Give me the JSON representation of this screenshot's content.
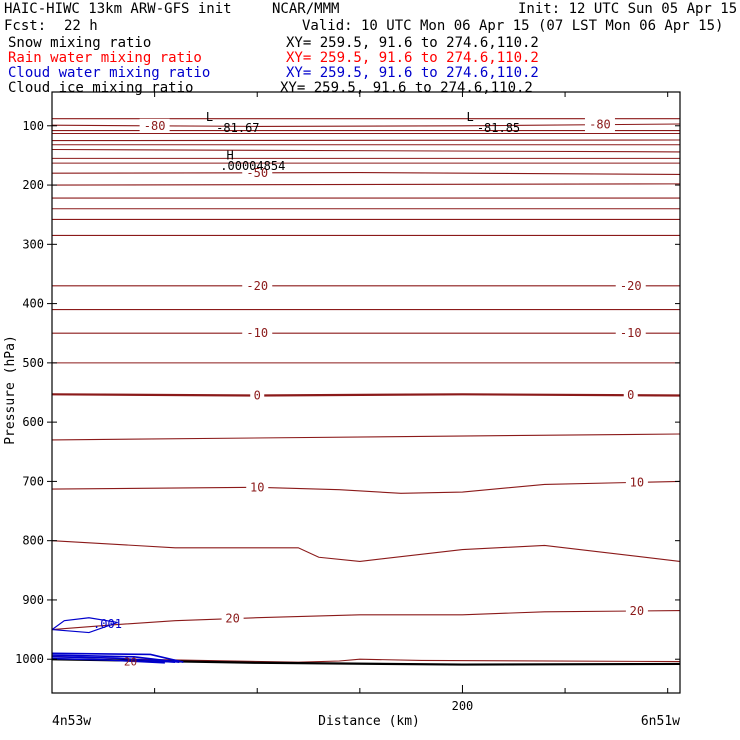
{
  "header": {
    "model": "HAIC-HIWC 13km ARW-GFS init",
    "org": "NCAR/MMM",
    "init": "Init: 12 UTC Sun 05 Apr 15",
    "fcst_label": "Fcst:",
    "fcst_value": "22 h",
    "valid": "Valid: 10 UTC Mon 06 Apr 15 (07 LST Mon 06 Apr 15)",
    "fields": [
      {
        "name": "Snow mixing ratio",
        "xy": "XY= 259.5, 91.6 to 274.6,110.2",
        "color": "#000000"
      },
      {
        "name": "Rain water mixing ratio",
        "xy": "XY= 259.5, 91.6 to 274.6,110.2",
        "color": "#ff0000"
      },
      {
        "name": "Cloud water mixing ratio",
        "xy": "XY= 259.5, 91.6 to 274.6,110.2",
        "color": "#0000cc"
      },
      {
        "name": "Cloud ice mixing ratio",
        "xy": "XY= 259.5, 91.6 to 274.6,110.2",
        "color": "#000000"
      }
    ]
  },
  "chart_data": {
    "type": "line",
    "xlabel": "Distance (km)",
    "ylabel": "Pressure (hPa)",
    "x_ticks": [
      200
    ],
    "xlim": [
      0,
      306
    ],
    "y_ticks": [
      100,
      200,
      300,
      400,
      500,
      600,
      700,
      800,
      900,
      1000
    ],
    "ylim": [
      43,
      1057
    ],
    "start_label": "4n53w",
    "end_label": "6n51w",
    "colors": {
      "temperature": "#8b1a1a",
      "cloud_water": "#0000cc",
      "ground": "#000000"
    },
    "temperature_contours": [
      {
        "value": -80,
        "label": "-80",
        "p": [
          [
            0,
            99
          ],
          [
            100,
            101
          ],
          [
            200,
            100
          ],
          [
            306,
            97
          ]
        ],
        "labels_at": [
          50,
          267
        ]
      },
      {
        "value": -70,
        "p": [
          [
            0,
            125
          ],
          [
            306,
            124
          ]
        ]
      },
      {
        "value": -60,
        "p": [
          [
            0,
            140
          ],
          [
            306,
            144
          ]
        ]
      },
      {
        "value": -50,
        "label": "-50",
        "p": [
          [
            0,
            180
          ],
          [
            150,
            179
          ],
          [
            306,
            182
          ]
        ],
        "labels_at": [
          100
        ]
      },
      {
        "value": -40,
        "p": [
          [
            0,
            222
          ],
          [
            306,
            222
          ]
        ]
      },
      {
        "value": -30,
        "p": [
          [
            0,
            258
          ],
          [
            306,
            258
          ]
        ]
      },
      {
        "value": -20,
        "label": "-20",
        "p": [
          [
            0,
            370
          ],
          [
            306,
            370
          ]
        ],
        "labels_at": [
          100,
          282
        ]
      },
      {
        "value": -10,
        "label": "-10",
        "p": [
          [
            0,
            450
          ],
          [
            306,
            450
          ]
        ],
        "labels_at": [
          100,
          282
        ]
      },
      {
        "value": 0,
        "label": "0",
        "p": [
          [
            0,
            553
          ],
          [
            100,
            555
          ],
          [
            200,
            553
          ],
          [
            306,
            555
          ]
        ],
        "labels_at": [
          100,
          282
        ],
        "bold": true
      },
      {
        "value": 10,
        "label": "10",
        "p": [
          [
            0,
            713
          ],
          [
            100,
            710
          ],
          [
            140,
            714
          ],
          [
            170,
            720
          ],
          [
            200,
            718
          ],
          [
            240,
            705
          ],
          [
            306,
            700
          ]
        ],
        "labels_at": [
          100,
          285
        ]
      },
      {
        "value": 20,
        "label": "20",
        "p": [
          [
            0,
            950
          ],
          [
            30,
            942
          ],
          [
            60,
            935
          ],
          [
            100,
            930
          ],
          [
            150,
            925
          ],
          [
            200,
            925
          ],
          [
            240,
            920
          ],
          [
            306,
            918
          ]
        ],
        "labels_at": [
          88,
          285
        ]
      }
    ],
    "annotations": [
      {
        "text": "L",
        "x": 75,
        "p": 85
      },
      {
        "text": "-81.67",
        "x": 80,
        "p": 104
      },
      {
        "text": "L",
        "x": 202,
        "p": 85
      },
      {
        "text": "-81.85",
        "x": 207,
        "p": 104
      },
      {
        "text": "H",
        "x": 85,
        "p": 150
      },
      {
        "text": ".00004854",
        "x": 82,
        "p": 168
      }
    ],
    "cloud_water": {
      "label": ".001",
      "value": 0.001,
      "x": 20,
      "p": 941
    },
    "lowest_label": "20"
  }
}
